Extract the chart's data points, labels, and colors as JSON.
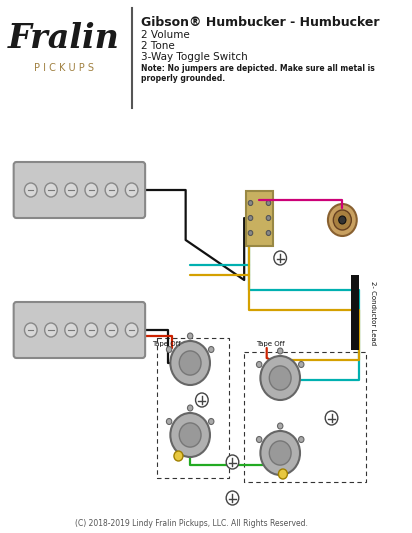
{
  "title": "Gibson® Humbucker - Humbucker",
  "subtitle_lines": [
    "2 Volume",
    "2 Tone",
    "3-Way Toggle Switch"
  ],
  "note": "Note: No jumpers are depicted. Make sure all metal is\nproperly grounded.",
  "footer": "(C) 2018-2019 Lindy Fralin Pickups, LLC. All Rights Reserved.",
  "fralin_text": "Fralin",
  "pickups_text": "P I C K U P S",
  "bg_color": "#ffffff",
  "title_color": "#1a1a1a",
  "note_color": "#1a1a1a",
  "footer_color": "#555555",
  "fralin_color": "#1a1a1a",
  "pickups_color": "#a08040",
  "humbucker_color": "#c8c8c8",
  "humbucker_border": "#888888",
  "wire_black": "#111111",
  "wire_teal": "#00b0b0",
  "wire_yellow": "#d4a000",
  "wire_magenta": "#cc0077",
  "wire_green": "#22aa22",
  "wire_red": "#cc2200",
  "pot_color": "#b0b0b0",
  "pot_border": "#666666",
  "switch_color": "#c8b060",
  "label_conductor": "2- Conductor Lead",
  "label_tape_off": "Tape Off",
  "ground_color": "#444444"
}
